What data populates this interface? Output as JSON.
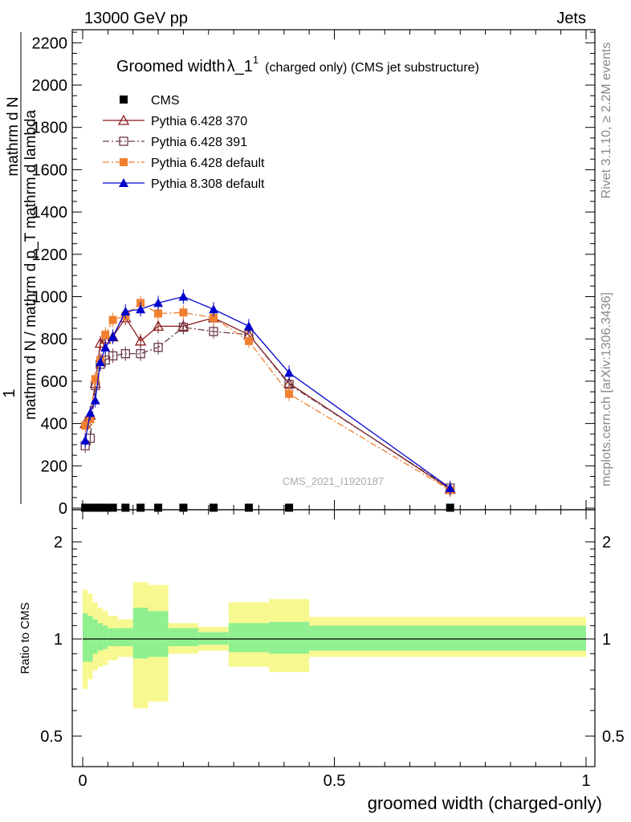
{
  "header": {
    "left": "13000 GeV pp",
    "right": "Jets"
  },
  "side_labels": {
    "rivet": "Rivet 3.1.10, ≥ 2.2M events",
    "mcplots": "mcplots.cern.ch [arXiv:1306.3436]"
  },
  "chart_data": [
    {
      "type": "line",
      "title_main": "Groomed width",
      "title_symbol": "λ_1",
      "title_superscript": "1",
      "title_suffix": "(charged only) (CMS jet substructure)",
      "watermark": "CMS_2021_I1920187",
      "ylabel_numerator": "1",
      "ylabel_denominator_left": "mathrm d N / mathrm d p",
      "ylabel_denominator_left_sub": "T",
      "ylabel_denominator_right": "mathrm d",
      "ylabel_denominator_right_lambda": "mathrm d N",
      "ylabel_text": "mathrm d N / mathrm d p_T mathrm d lambda",
      "ylabel_top": "mathrm d N",
      "ylabel_side": "mathrm d p_T mathrm d lambda",
      "xlim": [
        0,
        1
      ],
      "ylim": [
        0,
        2250
      ],
      "yticks": [
        0,
        200,
        400,
        600,
        800,
        1000,
        1200,
        1400,
        1600,
        1800,
        2000,
        2200
      ],
      "legend_placement": "top-left",
      "series": [
        {
          "name": "CMS",
          "color": "#000000",
          "marker": "square-filled",
          "line": "none",
          "x": [
            0.005,
            0.015,
            0.025,
            0.035,
            0.045,
            0.06,
            0.085,
            0.115,
            0.15,
            0.2,
            0.26,
            0.33,
            0.41,
            0.73
          ],
          "y": [
            2,
            2,
            2,
            2,
            2,
            2,
            2,
            2,
            2,
            2,
            2,
            2,
            2,
            2
          ]
        },
        {
          "name": "Pythia 6.428 370",
          "color": "#8b1a1a",
          "marker": "triangle-open",
          "line": "solid",
          "x": [
            0.005,
            0.015,
            0.025,
            0.035,
            0.045,
            0.06,
            0.085,
            0.115,
            0.15,
            0.2,
            0.26,
            0.33,
            0.41,
            0.73
          ],
          "y": [
            400,
            440,
            590,
            780,
            800,
            810,
            900,
            790,
            860,
            860,
            900,
            820,
            590,
            90
          ]
        },
        {
          "name": "Pythia 6.428 391",
          "color": "#6b3a4a",
          "marker": "square-open",
          "line": "dashdot",
          "x": [
            0.005,
            0.015,
            0.025,
            0.035,
            0.045,
            0.06,
            0.085,
            0.115,
            0.15,
            0.2,
            0.26,
            0.33,
            0.41,
            0.73
          ],
          "y": [
            295,
            330,
            580,
            680,
            700,
            720,
            730,
            730,
            760,
            855,
            835,
            820,
            585,
            95
          ]
        },
        {
          "name": "Pythia 6.428 default",
          "color": "#f08030",
          "marker": "square-filled",
          "line": "dashdot",
          "x": [
            0.005,
            0.015,
            0.025,
            0.035,
            0.045,
            0.06,
            0.085,
            0.115,
            0.15,
            0.2,
            0.26,
            0.33,
            0.41,
            0.73
          ],
          "y": [
            390,
            420,
            610,
            700,
            820,
            890,
            910,
            970,
            920,
            925,
            900,
            790,
            540,
            85
          ]
        },
        {
          "name": "Pythia 8.308 default",
          "color": "#0000cc",
          "marker": "triangle-filled",
          "line": "solid",
          "x": [
            0.005,
            0.015,
            0.025,
            0.035,
            0.045,
            0.06,
            0.085,
            0.115,
            0.15,
            0.2,
            0.26,
            0.33,
            0.41,
            0.73
          ],
          "y": [
            320,
            450,
            510,
            690,
            760,
            810,
            930,
            940,
            970,
            1000,
            940,
            860,
            640,
            95
          ]
        }
      ]
    },
    {
      "type": "area",
      "ylabel": "Ratio to CMS",
      "xlabel": "groomed width (charged-only)",
      "xlim": [
        0,
        1
      ],
      "ylim": [
        0.35,
        2.35
      ],
      "log_scale_y": true,
      "yticks": [
        0.5,
        1,
        2
      ],
      "xticks": [
        0,
        0.5,
        1
      ],
      "reference_line": 1,
      "bins": [
        0,
        0.01,
        0.02,
        0.03,
        0.04,
        0.05,
        0.07,
        0.1,
        0.13,
        0.17,
        0.23,
        0.29,
        0.37,
        0.45,
        1.0
      ],
      "band_inner": [
        [
          0.85,
          1.2
        ],
        [
          0.85,
          1.18
        ],
        [
          0.9,
          1.15
        ],
        [
          0.92,
          1.12
        ],
        [
          0.93,
          1.1
        ],
        [
          0.95,
          1.08
        ],
        [
          0.95,
          1.08
        ],
        [
          0.87,
          1.25
        ],
        [
          0.88,
          1.22
        ],
        [
          0.95,
          1.08
        ],
        [
          0.96,
          1.05
        ],
        [
          0.91,
          1.12
        ],
        [
          0.9,
          1.13
        ],
        [
          0.92,
          1.1
        ]
      ],
      "band_outer": [
        [
          0.7,
          1.42
        ],
        [
          0.75,
          1.38
        ],
        [
          0.8,
          1.3
        ],
        [
          0.82,
          1.25
        ],
        [
          0.83,
          1.22
        ],
        [
          0.86,
          1.18
        ],
        [
          0.88,
          1.15
        ],
        [
          0.61,
          1.5
        ],
        [
          0.64,
          1.47
        ],
        [
          0.9,
          1.12
        ],
        [
          0.92,
          1.09
        ],
        [
          0.82,
          1.3
        ],
        [
          0.79,
          1.33
        ],
        [
          0.88,
          1.17
        ]
      ],
      "colors": {
        "band_inner": "#90f090",
        "band_outer": "#f8f890"
      }
    }
  ]
}
